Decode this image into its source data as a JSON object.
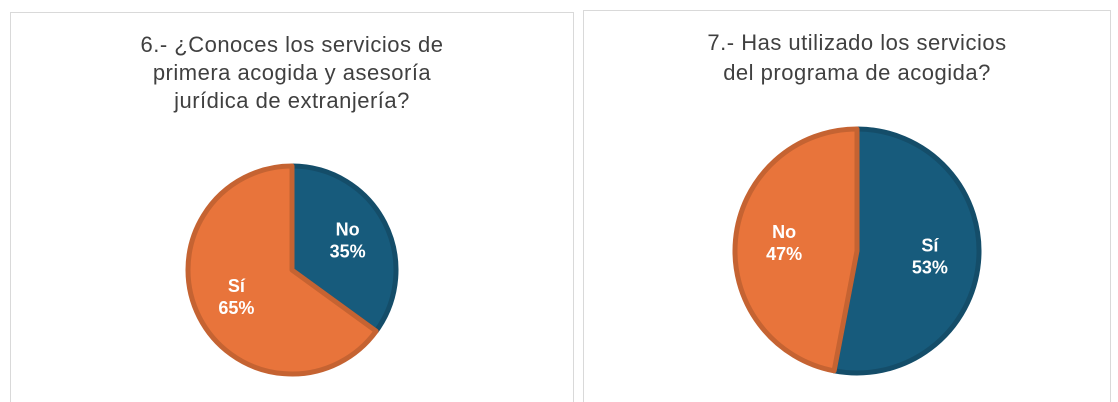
{
  "chart_data": [
    {
      "type": "pie",
      "title": [
        "6.- ¿Conoces los servicios de",
        "primera acogida y asesoría",
        "jurídica de extranjería?"
      ],
      "categories": [
        "No",
        "Sí"
      ],
      "values": [
        35,
        65
      ],
      "value_labels": [
        "35%",
        "65%"
      ],
      "colors": [
        "#175b7c",
        "#e8743b"
      ]
    },
    {
      "type": "pie",
      "title": [
        "7.- Has utilizado los servicios",
        "del programa de acogida?"
      ],
      "categories": [
        "Sí",
        "No"
      ],
      "values": [
        53,
        47
      ],
      "value_labels": [
        "53%",
        "47%"
      ],
      "colors": [
        "#175b7c",
        "#e8743b"
      ]
    }
  ]
}
